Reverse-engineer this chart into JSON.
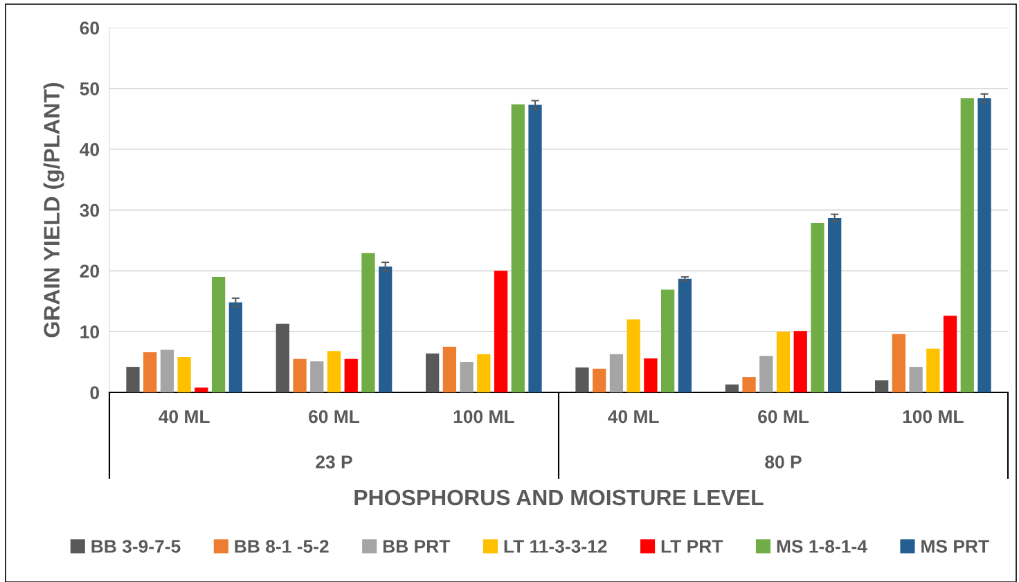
{
  "chart_data": {
    "type": "bar",
    "xlabel": "PHOSPHORUS AND MOISTURE LEVEL",
    "ylabel": "GRAIN YIELD (g/PLANT)",
    "categories": [
      "40 ML",
      "60 ML",
      "100 ML",
      "40 ML",
      "60 ML",
      "100 ML"
    ],
    "annotations": [
      "23 P",
      "80 P"
    ],
    "series": [
      {
        "name": "BB 3-9-7-5",
        "color": "#595959",
        "values": [
          4.2,
          11.3,
          6.4,
          4.1,
          1.3,
          2.0
        ]
      },
      {
        "name": "BB 8-1 -5-2",
        "color": "#ed7d31",
        "values": [
          6.6,
          5.5,
          7.5,
          3.9,
          2.5,
          9.6
        ]
      },
      {
        "name": "BB PRT",
        "color": "#a5a5a5",
        "values": [
          7.0,
          5.1,
          5.0,
          6.3,
          6.0,
          4.2
        ]
      },
      {
        "name": "LT 11-3-3-12",
        "color": "#ffc000",
        "values": [
          5.8,
          6.8,
          6.3,
          12.0,
          10.0,
          7.2
        ]
      },
      {
        "name": "LT PRT",
        "color": "#ff0000",
        "values": [
          0.8,
          5.5,
          20.0,
          5.6,
          10.1,
          12.6
        ]
      },
      {
        "name": "MS 1-8-1-4",
        "color": "#70ad47",
        "values": [
          19.0,
          22.9,
          47.4,
          16.9,
          27.9,
          48.4
        ]
      },
      {
        "name": "MS PRT",
        "color": "#255e91",
        "values": [
          14.8,
          20.7,
          47.3,
          18.7,
          28.7,
          48.4
        ],
        "errors": [
          0.7,
          0.7,
          0.7,
          0.3,
          0.6,
          0.7
        ]
      }
    ],
    "ylim": [
      0,
      60
    ],
    "yticks": [
      0,
      10,
      20,
      30,
      40,
      50,
      60
    ],
    "grid": "y",
    "legend": "bottom"
  }
}
